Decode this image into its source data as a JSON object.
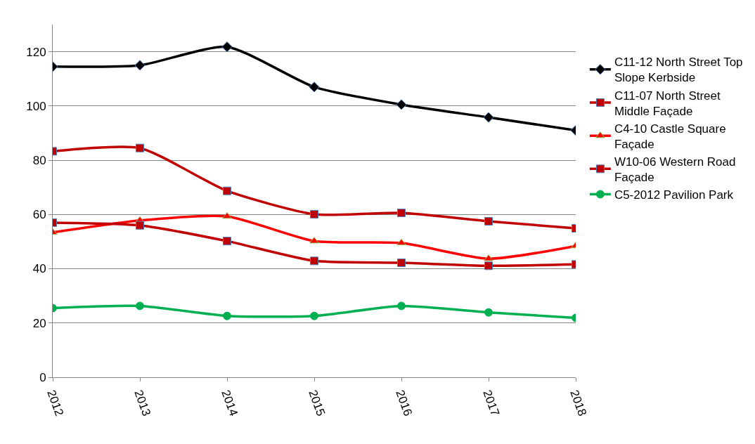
{
  "chart_data": {
    "type": "line",
    "categories": [
      "2012",
      "2013",
      "2014",
      "2015",
      "2016",
      "2017",
      "2018"
    ],
    "series": [
      {
        "name": "C11-12 North Street Top Slope Kerbside",
        "color": "#000000",
        "marker": "diamond",
        "values": [
          114.5,
          115,
          121.8,
          107,
          100.5,
          95.8,
          91
        ]
      },
      {
        "name": "C11-07 North Street Middle Façade",
        "color": "#c00000",
        "marker": "square",
        "values": [
          83.3,
          84.5,
          68.7,
          60.1,
          60.6,
          57.5,
          54.9
        ]
      },
      {
        "name": "C4-10 Castle Square Façade",
        "color": "#ff0000",
        "marker": "triangle",
        "values": [
          53.4,
          57.8,
          59.3,
          50.2,
          49.5,
          43.7,
          48.4
        ]
      },
      {
        "name": "W10-06 Western Road Façade",
        "color": "#c00000",
        "marker": "square",
        "values": [
          57,
          56,
          50.2,
          42.9,
          42.2,
          41.1,
          41.6
        ]
      },
      {
        "name": "C5-2012 Pavilion Park",
        "color": "#00b050",
        "marker": "circle",
        "values": [
          25.5,
          26.3,
          22.6,
          22.6,
          26.3,
          23.9,
          21.9
        ]
      }
    ],
    "ylim": [
      0,
      130
    ],
    "yticks": [
      0,
      20,
      40,
      60,
      80,
      100,
      120
    ],
    "grid": "y",
    "legend": "right"
  }
}
